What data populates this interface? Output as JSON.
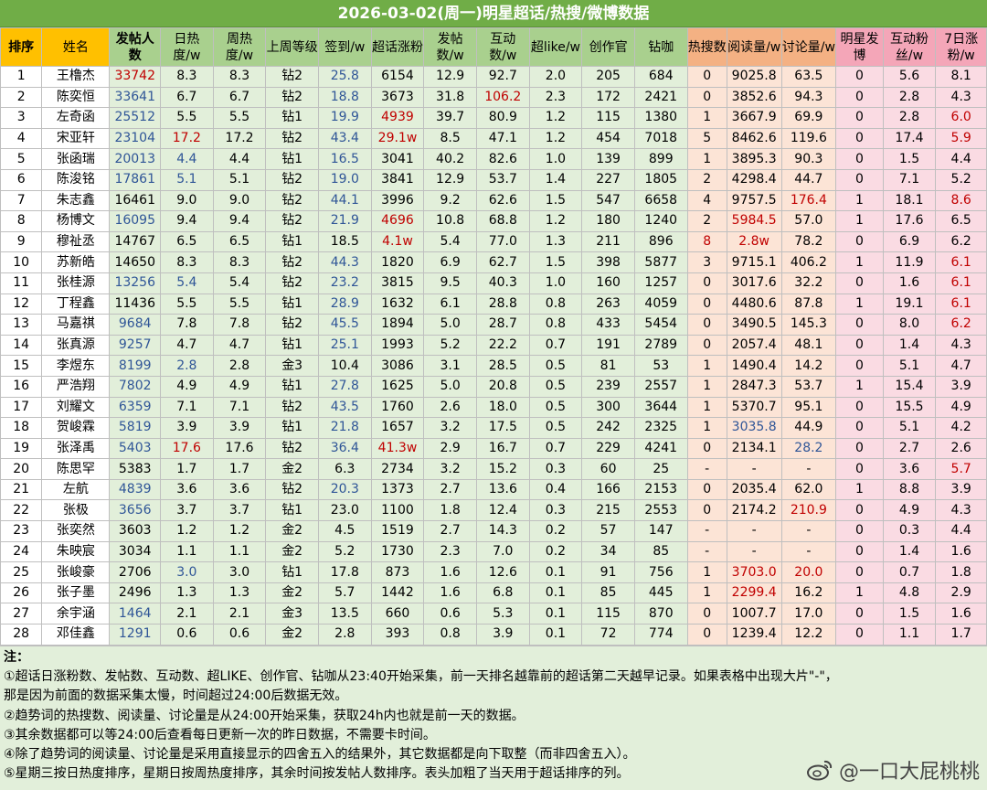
{
  "title": "2026-03-02(周一)明星超话/热搜/微博数据",
  "headers": [
    "排序",
    "姓名",
    "发帖人数",
    "日热度/w",
    "周热度/w",
    "上周等级",
    "签到/w",
    "超话涨粉",
    "发帖数/w",
    "互动数/w",
    "超like/w",
    "创作官",
    "钻咖",
    "热搜数",
    "阅读量/w",
    "讨论量/w",
    "明星发博",
    "互动粉丝/w",
    "7日涨粉/w"
  ],
  "rows": [
    [
      "1",
      "王橹杰",
      "33742",
      "8.3",
      "8.3",
      "钻2",
      "25.8",
      "6154",
      "12.9",
      "92.7",
      "2.0",
      "205",
      "684",
      "0",
      "9025.8",
      "63.5",
      "0",
      "5.6",
      "8.1"
    ],
    [
      "2",
      "陈奕恒",
      "33641",
      "6.7",
      "6.7",
      "钻2",
      "18.8",
      "3673",
      "31.8",
      "106.2",
      "2.3",
      "172",
      "2421",
      "0",
      "3852.6",
      "94.3",
      "0",
      "2.8",
      "4.3"
    ],
    [
      "3",
      "左奇函",
      "25512",
      "5.5",
      "5.5",
      "钻1",
      "19.9",
      "4939",
      "39.7",
      "80.9",
      "1.2",
      "115",
      "1380",
      "1",
      "3667.9",
      "69.9",
      "0",
      "2.8",
      "6.0"
    ],
    [
      "4",
      "宋亚轩",
      "23104",
      "17.2",
      "17.2",
      "钻2",
      "43.4",
      "29.1w",
      "8.5",
      "47.1",
      "1.2",
      "454",
      "7018",
      "5",
      "8462.6",
      "119.6",
      "0",
      "17.4",
      "5.9"
    ],
    [
      "5",
      "张函瑞",
      "20013",
      "4.4",
      "4.4",
      "钻1",
      "16.5",
      "3041",
      "40.2",
      "82.6",
      "1.0",
      "139",
      "899",
      "1",
      "3895.3",
      "90.3",
      "0",
      "1.5",
      "4.4"
    ],
    [
      "6",
      "陈浚铭",
      "17861",
      "5.1",
      "5.1",
      "钻2",
      "19.0",
      "3841",
      "12.9",
      "53.7",
      "1.4",
      "227",
      "1805",
      "2",
      "4298.4",
      "44.7",
      "0",
      "7.1",
      "5.2"
    ],
    [
      "7",
      "朱志鑫",
      "16461",
      "9.0",
      "9.0",
      "钻2",
      "44.1",
      "3996",
      "9.2",
      "62.6",
      "1.5",
      "547",
      "6658",
      "4",
      "9757.5",
      "176.4",
      "1",
      "18.1",
      "8.6"
    ],
    [
      "8",
      "杨博文",
      "16095",
      "9.4",
      "9.4",
      "钻2",
      "21.9",
      "4696",
      "10.8",
      "68.8",
      "1.2",
      "180",
      "1240",
      "2",
      "5984.5",
      "57.0",
      "1",
      "17.6",
      "6.5"
    ],
    [
      "9",
      "穆祉丞",
      "14767",
      "6.5",
      "6.5",
      "钻1",
      "18.5",
      "4.1w",
      "5.4",
      "77.0",
      "1.3",
      "211",
      "896",
      "8",
      "2.8w",
      "78.2",
      "0",
      "6.9",
      "6.2"
    ],
    [
      "10",
      "苏新皓",
      "14650",
      "8.3",
      "8.3",
      "钻2",
      "44.3",
      "1820",
      "6.9",
      "62.7",
      "1.5",
      "398",
      "5877",
      "3",
      "9715.1",
      "406.2",
      "1",
      "11.9",
      "6.1"
    ],
    [
      "11",
      "张桂源",
      "13256",
      "5.4",
      "5.4",
      "钻2",
      "23.2",
      "3815",
      "9.5",
      "40.3",
      "1.0",
      "160",
      "1257",
      "0",
      "3017.6",
      "32.2",
      "0",
      "1.6",
      "6.1"
    ],
    [
      "12",
      "丁程鑫",
      "11436",
      "5.5",
      "5.5",
      "钻1",
      "28.9",
      "1632",
      "6.1",
      "28.8",
      "0.8",
      "263",
      "4059",
      "0",
      "4480.6",
      "87.8",
      "1",
      "19.1",
      "6.1"
    ],
    [
      "13",
      "马嘉祺",
      "9684",
      "7.8",
      "7.8",
      "钻2",
      "45.5",
      "1894",
      "5.0",
      "28.7",
      "0.8",
      "433",
      "5454",
      "0",
      "3490.5",
      "145.3",
      "0",
      "8.0",
      "6.2"
    ],
    [
      "14",
      "张真源",
      "9257",
      "4.7",
      "4.7",
      "钻1",
      "25.1",
      "1993",
      "5.2",
      "22.2",
      "0.7",
      "191",
      "2789",
      "0",
      "2057.4",
      "48.1",
      "0",
      "1.4",
      "4.3"
    ],
    [
      "15",
      "李煜东",
      "8199",
      "2.8",
      "2.8",
      "金3",
      "10.4",
      "3086",
      "3.1",
      "28.5",
      "0.5",
      "81",
      "53",
      "1",
      "1490.4",
      "14.2",
      "0",
      "5.1",
      "4.7"
    ],
    [
      "16",
      "严浩翔",
      "7802",
      "4.9",
      "4.9",
      "钻1",
      "27.8",
      "1625",
      "5.0",
      "20.8",
      "0.5",
      "239",
      "2557",
      "1",
      "2847.3",
      "53.7",
      "1",
      "15.4",
      "3.9"
    ],
    [
      "17",
      "刘耀文",
      "6359",
      "7.1",
      "7.1",
      "钻2",
      "43.5",
      "1760",
      "2.6",
      "18.0",
      "0.5",
      "300",
      "3644",
      "1",
      "5370.7",
      "95.1",
      "0",
      "15.5",
      "4.9"
    ],
    [
      "18",
      "贺峻霖",
      "5819",
      "3.9",
      "3.9",
      "钻1",
      "21.8",
      "1657",
      "3.2",
      "17.5",
      "0.5",
      "242",
      "2325",
      "1",
      "3035.8",
      "44.9",
      "0",
      "5.1",
      "4.2"
    ],
    [
      "19",
      "张泽禹",
      "5403",
      "17.6",
      "17.6",
      "钻2",
      "36.4",
      "41.3w",
      "2.9",
      "16.7",
      "0.7",
      "229",
      "4241",
      "0",
      "2134.1",
      "28.2",
      "0",
      "2.7",
      "2.6"
    ],
    [
      "20",
      "陈思罕",
      "5383",
      "1.7",
      "1.7",
      "金2",
      "6.3",
      "2734",
      "3.2",
      "15.2",
      "0.3",
      "60",
      "25",
      "-",
      "-",
      "-",
      "0",
      "3.6",
      "5.7"
    ],
    [
      "21",
      "左航",
      "4839",
      "3.6",
      "3.6",
      "钻2",
      "20.3",
      "1373",
      "2.7",
      "13.6",
      "0.4",
      "166",
      "2153",
      "0",
      "2035.4",
      "62.0",
      "1",
      "8.8",
      "3.9"
    ],
    [
      "22",
      "张极",
      "3656",
      "3.7",
      "3.7",
      "钻1",
      "23.0",
      "1100",
      "1.8",
      "12.4",
      "0.3",
      "215",
      "2553",
      "0",
      "2174.2",
      "210.9",
      "0",
      "4.9",
      "4.3"
    ],
    [
      "23",
      "张奕然",
      "3603",
      "1.2",
      "1.2",
      "金2",
      "4.5",
      "1519",
      "2.7",
      "14.3",
      "0.2",
      "57",
      "147",
      "-",
      "-",
      "-",
      "0",
      "0.3",
      "4.4"
    ],
    [
      "24",
      "朱映宸",
      "3034",
      "1.1",
      "1.1",
      "金2",
      "5.2",
      "1730",
      "2.3",
      "7.0",
      "0.2",
      "34",
      "85",
      "-",
      "-",
      "-",
      "0",
      "1.4",
      "1.6"
    ],
    [
      "25",
      "张峻豪",
      "2706",
      "3.0",
      "3.0",
      "钻1",
      "17.8",
      "873",
      "1.6",
      "12.6",
      "0.1",
      "91",
      "756",
      "1",
      "3703.0",
      "20.0",
      "0",
      "0.7",
      "1.8"
    ],
    [
      "26",
      "张子墨",
      "2496",
      "1.3",
      "1.3",
      "金2",
      "5.7",
      "1442",
      "1.6",
      "6.8",
      "0.1",
      "85",
      "445",
      "1",
      "2299.4",
      "16.2",
      "1",
      "4.8",
      "2.9"
    ],
    [
      "27",
      "余宇涵",
      "1464",
      "2.1",
      "2.1",
      "金3",
      "13.5",
      "660",
      "0.6",
      "5.3",
      "0.1",
      "115",
      "870",
      "0",
      "1007.7",
      "17.0",
      "0",
      "1.5",
      "1.6"
    ],
    [
      "28",
      "邓佳鑫",
      "1291",
      "0.6",
      "0.6",
      "金2",
      "2.8",
      "393",
      "0.8",
      "3.9",
      "0.1",
      "72",
      "774",
      "0",
      "1239.4",
      "12.2",
      "0",
      "1.1",
      "1.7"
    ]
  ],
  "notes": {
    "label": "注：",
    "lines": [
      "①超话日涨粉数、发帖数、互动数、超LIKE、创作官、钻咖从23:40开始采集，前一天排名越靠前的超话第二天越早记录。如果表格中出现大片\"-\"，",
      "那是因为前面的数据采集太慢，时间超过24:00后数据无效。",
      "②趋势词的热搜数、阅读量、讨论量是从24:00开始采集，获取24h内也就是前一天的数据。",
      "③其余数据都可以等24:00后查看每日更新一次的昨日数据，不需要卡时间。",
      "④除了趋势词的阅读量、讨论量是采用直接显示的四舍五入的结果外，其它数据都是向下取整（而非四舍五入）。",
      "⑤星期三按日热度排序，星期日按周热度排序，其余时间按发帖人数排序。表头加粗了当天用于超话排序的列。"
    ]
  },
  "watermark": "@一口大屁桃桃",
  "colors": {
    "title_bg": "#70ad47",
    "header_yellow": "#ffc000",
    "header_green": "#a9d08e",
    "header_orange": "#f4b183",
    "header_pink": "#f4a6b8",
    "light_green": "#e2efda",
    "light_orange": "#fce4d6",
    "light_pink": "#fadbe3",
    "highlight_red": "#c00000",
    "highlight_blue": "#2f5597"
  },
  "highlights": {
    "red": [
      "0-2",
      "1-9",
      "6-15",
      "6-18",
      "8-7",
      "8-13",
      "8-14",
      "3-3",
      "3-7",
      "3-18",
      "18-3",
      "18-7",
      "21-15",
      "24-14",
      "24-15",
      "25-14",
      "2-7",
      "2-18",
      "7-7",
      "7-14",
      "9-18",
      "10-18",
      "11-18",
      "12-18",
      "19-18"
    ],
    "blue": [
      "1-2",
      "2-2",
      "3-2",
      "4-2",
      "5-2",
      "7-2",
      "10-2",
      "12-2",
      "13-2",
      "14-2",
      "15-2",
      "16-2",
      "17-2",
      "18-2",
      "20-2",
      "21-2",
      "26-2",
      "27-2",
      "4-3",
      "5-3",
      "10-3",
      "14-3",
      "24-3",
      "0-6",
      "1-6",
      "2-6",
      "3-6",
      "4-6",
      "5-6",
      "6-6",
      "7-6",
      "9-6",
      "10-6",
      "11-6",
      "12-6",
      "13-6",
      "15-6",
      "16-6",
      "17-6",
      "18-6",
      "20-6",
      "17-14",
      "18-15"
    ]
  }
}
